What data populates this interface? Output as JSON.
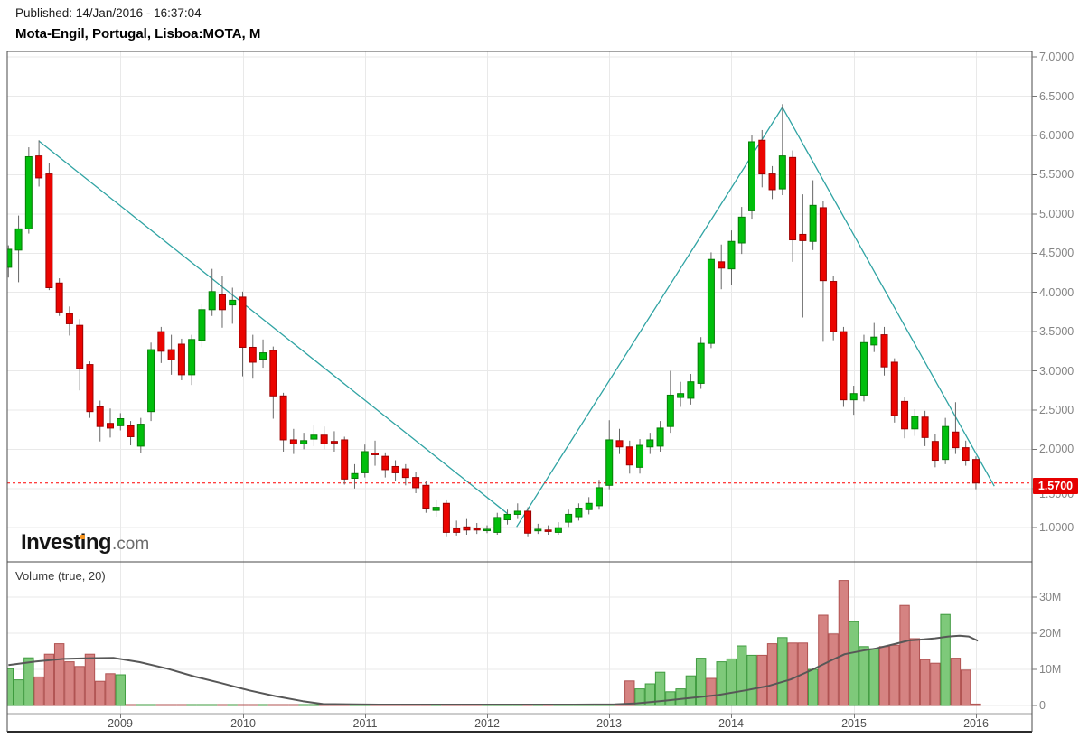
{
  "header": {
    "published": "Published: 14/Jan/2016 - 16:37:04",
    "instrument": "Mota-Engil, Portugal, Lisboa:MOTA, M"
  },
  "logo": {
    "part1": "Invest",
    "part2": "i",
    "part3": "ng",
    "tld": ".com"
  },
  "colors": {
    "candle_up": "#00bf0c",
    "candle_up_border": "#067c06",
    "candle_down": "#eb0400",
    "candle_down_border": "#9d0000",
    "wick": "#666666",
    "volume_up_fill": "#7ec97a",
    "volume_up_border": "#3f9b3f",
    "volume_down_fill": "#d58382",
    "volume_down_border": "#b05352",
    "trendline": "#2fa3a3",
    "last_price_line": "#ff0000",
    "badge_bg": "#e60000",
    "badge_text": "#ffffff",
    "volume_ma": "#575757",
    "grid": "#e9e9e9",
    "frame": "#4a4a4a",
    "tick": "#777777",
    "axis_text": "#848484",
    "year_text": "#4f4f4f",
    "logo_orange": "#f7941e"
  },
  "chart_data": {
    "type": "candlestick_with_volume",
    "title": "Mota-Engil, Portugal, Lisboa:MOTA, M",
    "timeframe_label": "M",
    "x_start": "2008-02",
    "x_end": "2016-01",
    "price_pane": {
      "ylim": [
        0.73,
        7.07
      ],
      "grid": true,
      "ticks": [
        {
          "value": 7.0,
          "label": "7.0000"
        },
        {
          "value": 6.5,
          "label": "6.5000"
        },
        {
          "value": 6.0,
          "label": "6.0000"
        },
        {
          "value": 5.5,
          "label": "5.5000"
        },
        {
          "value": 5.0,
          "label": "5.0000"
        },
        {
          "value": 4.5,
          "label": "4.5000"
        },
        {
          "value": 4.0,
          "label": "4.0000"
        },
        {
          "value": 3.5,
          "label": "3.5000"
        },
        {
          "value": 3.0,
          "label": "3.0000"
        },
        {
          "value": 2.5,
          "label": "2.5000"
        },
        {
          "value": 2.0,
          "label": "2.0000"
        },
        {
          "value": 1.5,
          "label": "1.5000"
        },
        {
          "value": 1.0,
          "label": "1.0000"
        }
      ],
      "last_price": 1.57,
      "last_price_label": "1.5700",
      "candles_ohlc": [
        [
          4.32,
          4.6,
          4.19,
          4.55
        ],
        [
          4.54,
          4.98,
          4.13,
          4.81
        ],
        [
          4.81,
          5.85,
          4.75,
          5.73
        ],
        [
          5.74,
          5.94,
          5.35,
          5.46
        ],
        [
          5.51,
          5.65,
          4.03,
          4.06
        ],
        [
          4.12,
          4.18,
          3.7,
          3.75
        ],
        [
          3.73,
          3.82,
          3.45,
          3.6
        ],
        [
          3.58,
          3.66,
          2.75,
          3.03
        ],
        [
          3.08,
          3.12,
          2.4,
          2.48
        ],
        [
          2.54,
          2.62,
          2.1,
          2.29
        ],
        [
          2.33,
          2.52,
          2.15,
          2.27
        ],
        [
          2.3,
          2.46,
          2.24,
          2.39
        ],
        [
          2.3,
          2.36,
          2.05,
          2.16
        ],
        [
          2.04,
          2.4,
          1.95,
          2.32
        ],
        [
          2.48,
          3.36,
          2.36,
          3.27
        ],
        [
          3.5,
          3.56,
          3.1,
          3.25
        ],
        [
          3.27,
          3.46,
          2.95,
          3.14
        ],
        [
          3.34,
          3.41,
          2.88,
          2.95
        ],
        [
          2.95,
          3.46,
          2.82,
          3.4
        ],
        [
          3.39,
          3.86,
          3.3,
          3.78
        ],
        [
          3.78,
          4.3,
          3.7,
          4.01
        ],
        [
          3.97,
          4.21,
          3.55,
          3.78
        ],
        [
          3.84,
          4.06,
          3.6,
          3.9
        ],
        [
          3.94,
          4.01,
          2.93,
          3.3
        ],
        [
          3.3,
          3.46,
          2.9,
          3.11
        ],
        [
          3.15,
          3.4,
          3.04,
          3.23
        ],
        [
          3.26,
          3.31,
          2.39,
          2.68
        ],
        [
          2.68,
          2.72,
          1.97,
          2.12
        ],
        [
          2.12,
          2.26,
          1.94,
          2.07
        ],
        [
          2.07,
          2.21,
          2.0,
          2.11
        ],
        [
          2.13,
          2.31,
          2.04,
          2.18
        ],
        [
          2.18,
          2.29,
          2.0,
          2.07
        ],
        [
          2.1,
          2.23,
          1.97,
          2.08
        ],
        [
          2.12,
          2.16,
          1.55,
          1.62
        ],
        [
          1.63,
          1.81,
          1.5,
          1.69
        ],
        [
          1.7,
          2.06,
          1.64,
          1.97
        ],
        [
          1.95,
          2.11,
          1.79,
          1.93
        ],
        [
          1.91,
          1.96,
          1.64,
          1.74
        ],
        [
          1.78,
          1.86,
          1.59,
          1.7
        ],
        [
          1.75,
          1.81,
          1.54,
          1.64
        ],
        [
          1.64,
          1.71,
          1.44,
          1.51
        ],
        [
          1.54,
          1.59,
          1.19,
          1.25
        ],
        [
          1.22,
          1.36,
          1.14,
          1.26
        ],
        [
          1.31,
          1.36,
          0.89,
          0.94
        ],
        [
          0.99,
          1.09,
          0.9,
          0.94
        ],
        [
          1.01,
          1.11,
          0.91,
          0.97
        ],
        [
          0.99,
          1.06,
          0.92,
          0.97
        ],
        [
          0.97,
          1.03,
          0.93,
          0.98
        ],
        [
          0.94,
          1.19,
          0.91,
          1.13
        ],
        [
          1.1,
          1.23,
          1.04,
          1.17
        ],
        [
          1.17,
          1.31,
          1.11,
          1.21
        ],
        [
          1.21,
          1.26,
          0.89,
          0.93
        ],
        [
          0.96,
          1.05,
          0.92,
          0.98
        ],
        [
          0.97,
          1.03,
          0.91,
          0.96
        ],
        [
          0.94,
          1.07,
          0.91,
          1.0
        ],
        [
          1.07,
          1.23,
          1.01,
          1.17
        ],
        [
          1.14,
          1.31,
          1.09,
          1.25
        ],
        [
          1.23,
          1.39,
          1.17,
          1.31
        ],
        [
          1.28,
          1.61,
          1.23,
          1.51
        ],
        [
          1.54,
          2.37,
          1.49,
          2.12
        ],
        [
          2.11,
          2.26,
          1.94,
          2.03
        ],
        [
          2.03,
          2.11,
          1.69,
          1.8
        ],
        [
          1.77,
          2.13,
          1.69,
          2.05
        ],
        [
          2.03,
          2.21,
          1.94,
          2.12
        ],
        [
          2.04,
          2.36,
          1.97,
          2.27
        ],
        [
          2.29,
          3.0,
          2.21,
          2.69
        ],
        [
          2.66,
          2.86,
          2.54,
          2.71
        ],
        [
          2.65,
          2.96,
          2.57,
          2.86
        ],
        [
          2.84,
          3.43,
          2.77,
          3.35
        ],
        [
          3.35,
          4.51,
          3.29,
          4.42
        ],
        [
          4.39,
          4.61,
          4.04,
          4.31
        ],
        [
          4.3,
          4.79,
          4.09,
          4.65
        ],
        [
          4.63,
          5.09,
          4.49,
          4.96
        ],
        [
          5.04,
          6.01,
          4.94,
          5.92
        ],
        [
          5.94,
          6.07,
          5.34,
          5.51
        ],
        [
          5.51,
          5.61,
          5.19,
          5.31
        ],
        [
          5.32,
          6.4,
          5.24,
          5.74
        ],
        [
          5.72,
          5.81,
          4.39,
          4.67
        ],
        [
          4.74,
          5.25,
          3.68,
          4.66
        ],
        [
          4.65,
          5.43,
          4.54,
          5.11
        ],
        [
          5.08,
          5.16,
          3.37,
          4.15
        ],
        [
          4.14,
          4.21,
          3.39,
          3.5
        ],
        [
          3.5,
          3.56,
          2.54,
          2.63
        ],
        [
          2.63,
          2.81,
          2.44,
          2.71
        ],
        [
          2.69,
          3.46,
          2.61,
          3.36
        ],
        [
          3.33,
          3.61,
          3.24,
          3.43
        ],
        [
          3.46,
          3.56,
          2.94,
          3.05
        ],
        [
          3.11,
          3.16,
          2.34,
          2.43
        ],
        [
          2.61,
          2.66,
          2.14,
          2.26
        ],
        [
          2.26,
          2.51,
          2.17,
          2.42
        ],
        [
          2.41,
          2.49,
          2.04,
          2.15
        ],
        [
          2.1,
          2.19,
          1.77,
          1.86
        ],
        [
          1.87,
          2.4,
          1.81,
          2.29
        ],
        [
          2.22,
          2.6,
          1.94,
          2.02
        ],
        [
          2.02,
          2.11,
          1.79,
          1.86
        ],
        [
          1.87,
          1.91,
          1.49,
          1.57
        ]
      ],
      "trendlines": [
        {
          "x1_month": 3.0,
          "p1": 5.93,
          "x2_month": 49.0,
          "p2": 1.18
        },
        {
          "x1_month": 49.9,
          "p1": 1.01,
          "x2_month": 76.0,
          "p2": 6.36
        },
        {
          "x1_month": 76.0,
          "p1": 6.36,
          "x2_month": 96.8,
          "p2": 1.53
        }
      ]
    },
    "volume_pane": {
      "label": "Volume (true, 20)",
      "unit": "M",
      "ticks": [
        {
          "value": 30,
          "label": "30M"
        },
        {
          "value": 20,
          "label": "20M"
        },
        {
          "value": 10,
          "label": "10M"
        },
        {
          "value": 0,
          "label": "0"
        }
      ],
      "volumes_m": [
        10.2,
        7.1,
        13.2,
        7.9,
        14.2,
        17.1,
        12.1,
        10.8,
        14.2,
        6.7,
        8.8,
        8.5,
        0.2,
        0.2,
        0.2,
        0.2,
        0.2,
        0.2,
        0.2,
        0.2,
        0.2,
        0.2,
        0.2,
        0.2,
        0.2,
        0.2,
        0.2,
        0.2,
        0.2,
        0.2,
        0.2,
        0.2,
        0.2,
        0.2,
        0.2,
        0.2,
        0.2,
        0.2,
        0.2,
        0.2,
        0.2,
        0.2,
        0.2,
        0.2,
        0.2,
        0.2,
        0.2,
        0.2,
        0.2,
        0.2,
        0.2,
        0.2,
        0.2,
        0.2,
        0.2,
        0.2,
        0.2,
        0.2,
        0.2,
        0.2,
        0.2,
        6.8,
        4.6,
        6.0,
        9.2,
        3.8,
        4.6,
        8.2,
        13.1,
        7.5,
        12.1,
        12.9,
        16.5,
        13.9,
        13.9,
        17.1,
        18.8,
        17.3,
        17.3,
        10.0,
        25.0,
        19.8,
        34.6,
        23.2,
        16.3,
        15.7,
        16.3,
        16.7,
        27.7,
        18.5,
        12.7,
        11.7,
        25.2,
        13.1,
        9.8,
        0.4
      ],
      "bar_color_overrides": {
        "69": "down",
        "70": "up",
        "89": "down"
      },
      "ma20_points": [
        [
          0,
          11.2
        ],
        [
          2.7,
          12.2
        ],
        [
          5.4,
          12.9
        ],
        [
          8,
          13.1
        ],
        [
          10.3,
          13.2
        ],
        [
          12.9,
          12.0
        ],
        [
          15.6,
          10.2
        ],
        [
          18.3,
          8.0
        ],
        [
          20.9,
          6.2
        ],
        [
          23.6,
          4.2
        ],
        [
          26.2,
          2.6
        ],
        [
          28.9,
          1.2
        ],
        [
          30.9,
          0.4
        ],
        [
          36.4,
          0.25
        ],
        [
          45.3,
          0.25
        ],
        [
          54.2,
          0.25
        ],
        [
          59.5,
          0.3
        ],
        [
          61.7,
          0.6
        ],
        [
          64.4,
          1.3
        ],
        [
          67,
          2.1
        ],
        [
          69.7,
          2.9
        ],
        [
          72.4,
          4.2
        ],
        [
          74.6,
          5.4
        ],
        [
          76.8,
          7.2
        ],
        [
          79,
          10.0
        ],
        [
          80.8,
          12.5
        ],
        [
          82.1,
          14.2
        ],
        [
          83.9,
          15.2
        ],
        [
          85.2,
          15.8
        ],
        [
          87,
          17.0
        ],
        [
          88.4,
          18.0
        ],
        [
          89.9,
          18.3
        ],
        [
          91,
          18.6
        ],
        [
          92.3,
          19.1
        ],
        [
          93.4,
          19.3
        ],
        [
          94.3,
          19.1
        ],
        [
          95.2,
          17.9
        ]
      ]
    },
    "x_axis": {
      "year_labels": [
        "2009",
        "2010",
        "2011",
        "2012",
        "2013",
        "2014",
        "2015",
        "2016"
      ],
      "year_month_index": [
        11,
        23,
        35,
        47,
        59,
        71,
        83,
        95
      ]
    }
  }
}
